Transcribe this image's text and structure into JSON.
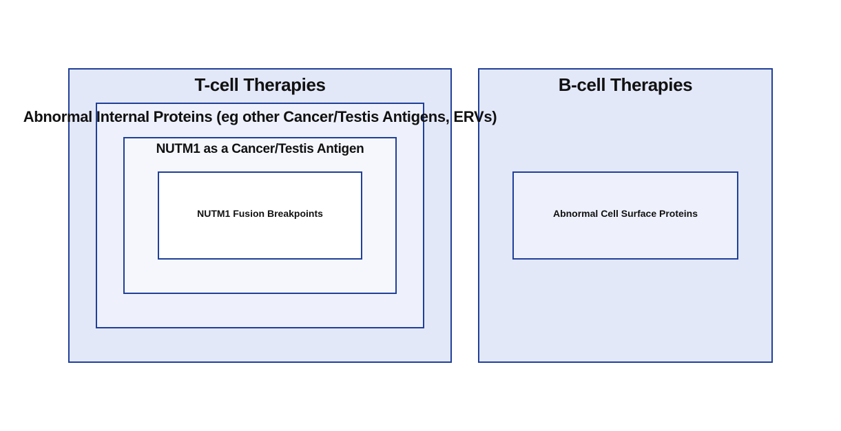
{
  "diagram": {
    "t_cell": {
      "title": "T-cell Therapies"
    },
    "b_cell": {
      "title": "B-cell Therapies"
    },
    "internal_proteins": {
      "title": "Abnormal Internal Proteins (eg other Cancer/Testis Antigens, ERVs)"
    },
    "cancer_testis_antigen": {
      "title": "NUTM1 as a Cancer/Testis Antigen"
    },
    "fusion_breakpoints": {
      "title": "NUTM1 Fusion Breakpoints"
    },
    "cell_surface_proteins": {
      "title": "Abnormal Cell Surface Proteins"
    }
  },
  "colors": {
    "border": "#1f3f99",
    "outer_fill": "#e3e8f9",
    "mid_fill": "#eef1fc",
    "inner_fill": "#f5f7fd",
    "core_fill": "#ffffff"
  }
}
